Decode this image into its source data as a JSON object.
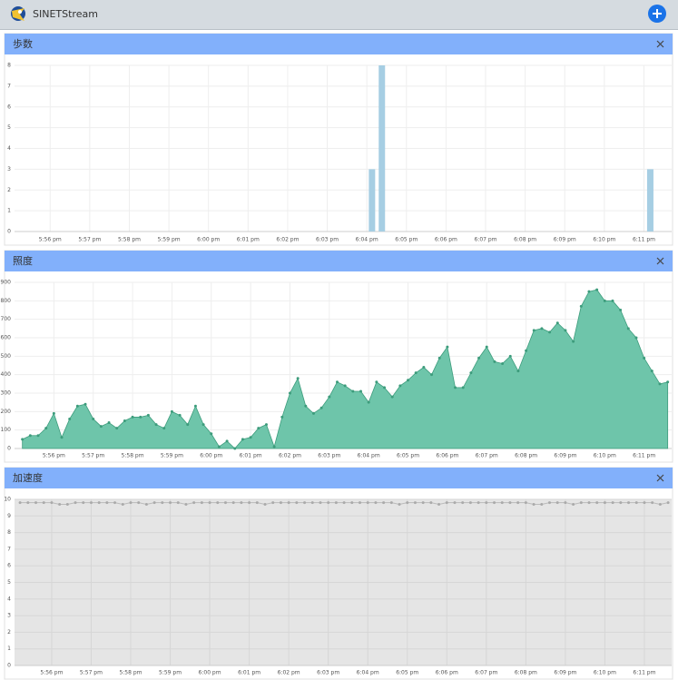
{
  "header": {
    "title": "SINETStream"
  },
  "chart_data": [
    {
      "type": "bar",
      "title": "歩数",
      "x": [
        1084.13,
        1084.38,
        1091.16
      ],
      "values": [
        3,
        8,
        3
      ],
      "color": "#a6cee3",
      "xlim": [
        1075.1,
        1091.7
      ],
      "xticks": [
        {
          "value": 1076,
          "label": "5:56 pm"
        },
        {
          "value": 1077,
          "label": "5:57 pm"
        },
        {
          "value": 1078,
          "label": "5:58 pm"
        },
        {
          "value": 1079,
          "label": "5:59 pm"
        },
        {
          "value": 1080,
          "label": "6:00 pm"
        },
        {
          "value": 1081,
          "label": "6:01 pm"
        },
        {
          "value": 1082,
          "label": "6:02 pm"
        },
        {
          "value": 1083,
          "label": "6:03 pm"
        },
        {
          "value": 1084,
          "label": "6:04 pm"
        },
        {
          "value": 1085,
          "label": "6:05 pm"
        },
        {
          "value": 1086,
          "label": "6:06 pm"
        },
        {
          "value": 1087,
          "label": "6:07 pm"
        },
        {
          "value": 1088,
          "label": "6:08 pm"
        },
        {
          "value": 1089,
          "label": "6:09 pm"
        },
        {
          "value": 1090,
          "label": "6:10 pm"
        },
        {
          "value": 1091,
          "label": "6:11 pm"
        }
      ],
      "ylim": [
        0,
        8
      ],
      "yticks": [
        0,
        1,
        2,
        3,
        4,
        5,
        6,
        7,
        8
      ],
      "grid": true,
      "background": "#ffffff"
    },
    {
      "type": "area",
      "title": "照度",
      "x": [
        1075.2,
        1075.4,
        1075.6,
        1075.8,
        1076,
        1076.2,
        1076.4,
        1076.6,
        1076.8,
        1077,
        1077.2,
        1077.4,
        1077.6,
        1077.8,
        1078,
        1078.2,
        1078.4,
        1078.6,
        1078.8,
        1079,
        1079.2,
        1079.4,
        1079.6,
        1079.8,
        1080,
        1080.2,
        1080.4,
        1080.6,
        1080.8,
        1081,
        1081.2,
        1081.4,
        1081.6,
        1081.8,
        1082,
        1082.2,
        1082.4,
        1082.6,
        1082.8,
        1083,
        1083.2,
        1083.4,
        1083.6,
        1083.8,
        1084,
        1084.2,
        1084.4,
        1084.6,
        1084.8,
        1085,
        1085.2,
        1085.4,
        1085.6,
        1085.8,
        1086,
        1086.2,
        1086.4,
        1086.6,
        1086.8,
        1087,
        1087.2,
        1087.4,
        1087.6,
        1087.8,
        1088,
        1088.2,
        1088.4,
        1088.6,
        1088.8,
        1089,
        1089.2,
        1089.4,
        1089.6,
        1089.8,
        1090,
        1090.2,
        1090.4,
        1090.6,
        1090.8,
        1091,
        1091.2,
        1091.4,
        1091.6
      ],
      "values": [
        50,
        70,
        70,
        110,
        190,
        60,
        160,
        230,
        240,
        160,
        120,
        140,
        110,
        150,
        170,
        170,
        180,
        130,
        110,
        200,
        180,
        130,
        230,
        130,
        80,
        10,
        40,
        0,
        50,
        60,
        110,
        130,
        10,
        170,
        300,
        380,
        230,
        190,
        220,
        280,
        360,
        340,
        310,
        310,
        250,
        360,
        330,
        280,
        340,
        370,
        410,
        440,
        400,
        490,
        550,
        330,
        330,
        410,
        490,
        550,
        470,
        460,
        500,
        420,
        530,
        640,
        650,
        630,
        680,
        640,
        580,
        770,
        850,
        860,
        800,
        800,
        750,
        650,
        600,
        490,
        420,
        350,
        360
      ],
      "color": "#66c2a5",
      "marker_color": "#3d9c7c",
      "xlim": [
        1075.0,
        1091.7
      ],
      "xticks": [
        {
          "value": 1076,
          "label": "5:56 pm"
        },
        {
          "value": 1077,
          "label": "5:57 pm"
        },
        {
          "value": 1078,
          "label": "5:58 pm"
        },
        {
          "value": 1079,
          "label": "5:59 pm"
        },
        {
          "value": 1080,
          "label": "6:00 pm"
        },
        {
          "value": 1081,
          "label": "6:01 pm"
        },
        {
          "value": 1082,
          "label": "6:02 pm"
        },
        {
          "value": 1083,
          "label": "6:03 pm"
        },
        {
          "value": 1084,
          "label": "6:04 pm"
        },
        {
          "value": 1085,
          "label": "6:05 pm"
        },
        {
          "value": 1086,
          "label": "6:06 pm"
        },
        {
          "value": 1087,
          "label": "6:07 pm"
        },
        {
          "value": 1088,
          "label": "6:08 pm"
        },
        {
          "value": 1089,
          "label": "6:09 pm"
        },
        {
          "value": 1090,
          "label": "6:10 pm"
        },
        {
          "value": 1091,
          "label": "6:11 pm"
        }
      ],
      "ylim": [
        0,
        900
      ],
      "yticks": [
        0,
        100,
        200,
        300,
        400,
        500,
        600,
        700,
        800,
        900
      ],
      "grid": true,
      "background": "#ffffff"
    },
    {
      "type": "line",
      "title": "加速度",
      "x": [
        1075.2,
        1075.4,
        1075.6,
        1075.8,
        1076,
        1076.2,
        1076.4,
        1076.6,
        1076.8,
        1077,
        1077.2,
        1077.4,
        1077.6,
        1077.8,
        1078,
        1078.2,
        1078.4,
        1078.6,
        1078.8,
        1079,
        1079.2,
        1079.4,
        1079.6,
        1079.8,
        1080,
        1080.2,
        1080.4,
        1080.6,
        1080.8,
        1081,
        1081.2,
        1081.4,
        1081.6,
        1081.8,
        1082,
        1082.2,
        1082.4,
        1082.6,
        1082.8,
        1083,
        1083.2,
        1083.4,
        1083.6,
        1083.8,
        1084,
        1084.2,
        1084.4,
        1084.6,
        1084.8,
        1085,
        1085.2,
        1085.4,
        1085.6,
        1085.8,
        1086,
        1086.2,
        1086.4,
        1086.6,
        1086.8,
        1087,
        1087.2,
        1087.4,
        1087.6,
        1087.8,
        1088,
        1088.2,
        1088.4,
        1088.6,
        1088.8,
        1089,
        1089.2,
        1089.4,
        1089.6,
        1089.8,
        1090,
        1090.2,
        1090.4,
        1090.6,
        1090.8,
        1091,
        1091.2,
        1091.4,
        1091.6
      ],
      "values": [
        9.8,
        9.8,
        9.8,
        9.8,
        9.8,
        9.7,
        9.7,
        9.8,
        9.8,
        9.8,
        9.8,
        9.8,
        9.8,
        9.7,
        9.8,
        9.8,
        9.7,
        9.8,
        9.8,
        9.8,
        9.8,
        9.7,
        9.8,
        9.8,
        9.8,
        9.8,
        9.8,
        9.8,
        9.8,
        9.8,
        9.8,
        9.7,
        9.8,
        9.8,
        9.8,
        9.8,
        9.8,
        9.8,
        9.8,
        9.8,
        9.8,
        9.8,
        9.8,
        9.8,
        9.8,
        9.8,
        9.8,
        9.8,
        9.7,
        9.8,
        9.8,
        9.8,
        9.8,
        9.7,
        9.8,
        9.8,
        9.8,
        9.8,
        9.8,
        9.8,
        9.8,
        9.8,
        9.8,
        9.8,
        9.8,
        9.7,
        9.7,
        9.8,
        9.8,
        9.8,
        9.7,
        9.8,
        9.8,
        9.8,
        9.8,
        9.8,
        9.8,
        9.8,
        9.8,
        9.8,
        9.8,
        9.7,
        9.8
      ],
      "color": "#bbbbbb",
      "marker_color": "#aaaaaa",
      "xlim": [
        1075.06,
        1091.69
      ],
      "xticks": [
        {
          "value": 1076,
          "label": "5:56 pm"
        },
        {
          "value": 1077,
          "label": "5:57 pm"
        },
        {
          "value": 1078,
          "label": "5:58 pm"
        },
        {
          "value": 1079,
          "label": "5:59 pm"
        },
        {
          "value": 1080,
          "label": "6:00 pm"
        },
        {
          "value": 1081,
          "label": "6:01 pm"
        },
        {
          "value": 1082,
          "label": "6:02 pm"
        },
        {
          "value": 1083,
          "label": "6:03 pm"
        },
        {
          "value": 1084,
          "label": "6:04 pm"
        },
        {
          "value": 1085,
          "label": "6:05 pm"
        },
        {
          "value": 1086,
          "label": "6:06 pm"
        },
        {
          "value": 1087,
          "label": "6:07 pm"
        },
        {
          "value": 1088,
          "label": "6:08 pm"
        },
        {
          "value": 1089,
          "label": "6:09 pm"
        },
        {
          "value": 1090,
          "label": "6:10 pm"
        },
        {
          "value": 1091,
          "label": "6:11 pm"
        }
      ],
      "ylim": [
        0,
        10
      ],
      "yticks": [
        0,
        1,
        2,
        3,
        4,
        5,
        6,
        7,
        8,
        9,
        10
      ],
      "grid": true,
      "background": "#e5e5e5"
    }
  ]
}
